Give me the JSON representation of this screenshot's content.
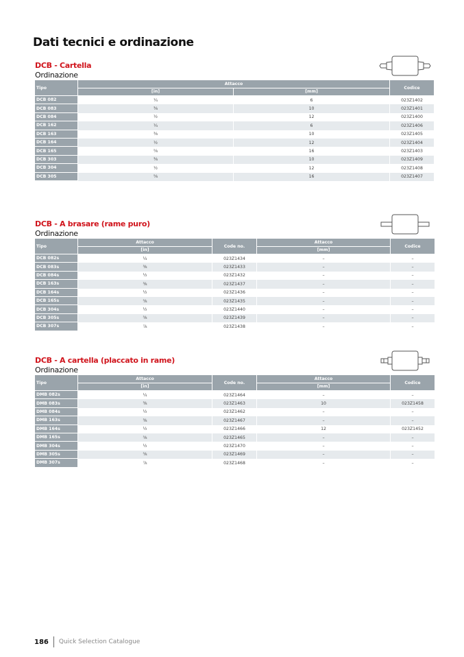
{
  "page_title": "Dati tecnici e ordinazione",
  "sections": [
    {
      "title": "DCB - Cartella",
      "subtitle": "Ordinazione",
      "headers": {
        "tipo": "Tipo",
        "attacco": "Attacco",
        "in": "[in]",
        "mm": "[mm]",
        "codice": "Codice"
      },
      "rows": [
        [
          "DCB 082",
          "¼",
          "6",
          "023Z1402"
        ],
        [
          "DCB 083",
          "⅜",
          "10",
          "023Z1401"
        ],
        [
          "DCB 084",
          "½",
          "12",
          "023Z1400"
        ],
        [
          "DCB 162",
          "¼",
          "6",
          "023Z1406"
        ],
        [
          "DCB 163",
          "⅜",
          "10",
          "023Z1405"
        ],
        [
          "DCB 164",
          "½",
          "12",
          "023Z1404"
        ],
        [
          "DCB 165",
          "⅝",
          "16",
          "023Z1403"
        ],
        [
          "DCB 303",
          "⅜",
          "10",
          "023Z1409"
        ],
        [
          "DCB 304",
          "½",
          "12",
          "023Z1408"
        ],
        [
          "DCB 305",
          "⅝",
          "16",
          "023Z1407"
        ]
      ]
    },
    {
      "title": "DCB - A brasare (rame puro)",
      "subtitle": "Ordinazione",
      "headers": {
        "tipo": "Tipo",
        "attacco": "Attacco",
        "in": "[in]",
        "code": "Code no.",
        "attacco2": "Attacco",
        "mm": "[mm]",
        "codice": "Codice"
      },
      "rows": [
        [
          "DCB 082s",
          "¼",
          "023Z1434",
          "–",
          "–"
        ],
        [
          "DCB 083s",
          "⅜",
          "023Z1433",
          "–",
          "–"
        ],
        [
          "DCB 084s",
          "½",
          "023Z1432",
          "–",
          "–"
        ],
        [
          "DCB 163s",
          "⅜",
          "023Z1437",
          "–",
          "–"
        ],
        [
          "DCB 164s",
          "½",
          "023Z1436",
          "–",
          "–"
        ],
        [
          "DCB 165s",
          "⅝",
          "023Z1435",
          "–",
          "–"
        ],
        [
          "DCB 304s",
          "½",
          "023Z1440",
          "–",
          "–"
        ],
        [
          "DCB 305s",
          "⅝",
          "023Z1439",
          "–",
          "–"
        ],
        [
          "DCB 307s",
          "⅞",
          "023Z1438",
          "–",
          "–"
        ]
      ]
    },
    {
      "title": "DCB - A cartella (placcato in rame)",
      "subtitle": "Ordinazione",
      "headers": {
        "tipo": "Tipo",
        "attacco": "Attacco",
        "in": "[in]",
        "code": "Code no.",
        "attacco2": "Attacco",
        "mm": "[mm]",
        "codice": "Codice"
      },
      "rows": [
        [
          "DMB 082s",
          "¼",
          "023Z1464",
          "–",
          "–"
        ],
        [
          "DMB 083s",
          "⅜",
          "023Z1463",
          "10",
          "023Z1458"
        ],
        [
          "DMB 084s",
          "½",
          "023Z1462",
          "–",
          "–"
        ],
        [
          "DMB 163s",
          "⅜",
          "023Z1467",
          "–",
          "–"
        ],
        [
          "DMB 164s",
          "½",
          "023Z1466",
          "12",
          "023Z1452"
        ],
        [
          "DMB 165s",
          "⅝",
          "023Z1465",
          "–",
          "–"
        ],
        [
          "DMB 304s",
          "½",
          "023Z1470",
          "–",
          "–"
        ],
        [
          "DMB 305s",
          "⅝",
          "023Z1469",
          "–",
          "–"
        ],
        [
          "DMB 307s",
          "⅞",
          "023Z1468",
          "–",
          "–"
        ]
      ]
    }
  ],
  "footer": {
    "page": "186",
    "catalogue": "Quick Selection Catalogue"
  }
}
